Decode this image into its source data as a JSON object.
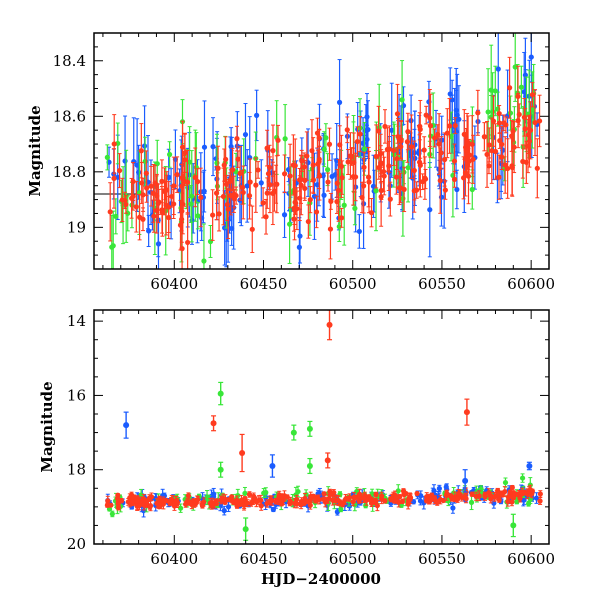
{
  "colors": {
    "blue": "#1a5cff",
    "green": "#39e639",
    "red": "#ff3b1f",
    "frame": "#000000"
  },
  "xlabel": "HJD−2400000",
  "chart_data": [
    {
      "type": "scatter",
      "panel": "top",
      "ylabel": "Magnitude",
      "xlim": [
        60355,
        60610
      ],
      "ylim": [
        19.15,
        18.3
      ],
      "y_inverted": true,
      "xticks": [
        60400,
        60450,
        60500,
        60550,
        60600
      ],
      "yticks": [
        18.4,
        18.6,
        18.8,
        19
      ],
      "ytick_labels": [
        "18.4",
        "18.6",
        "18.8",
        "19"
      ],
      "error_bars": true,
      "series": [
        {
          "color": "blue",
          "points_per_band": 150,
          "mean_start": 18.87,
          "mean_end": 18.6,
          "scatter": 0.1,
          "err": 0.1
        },
        {
          "color": "green",
          "points_per_band": 90,
          "mean_start": 18.87,
          "mean_end": 18.6,
          "scatter": 0.1,
          "err": 0.1
        },
        {
          "color": "red",
          "points_per_band": 260,
          "mean_start": 18.87,
          "mean_end": 18.63,
          "scatter": 0.08,
          "err": 0.07
        }
      ],
      "reference_line": {
        "y": 18.88,
        "x_range": [
          60355,
          60380
        ]
      }
    },
    {
      "type": "scatter",
      "panel": "bottom",
      "ylabel": "Magnitude",
      "xlim": [
        60355,
        60610
      ],
      "ylim": [
        20,
        13.7
      ],
      "y_inverted": true,
      "xticks": [
        60400,
        60450,
        60500,
        60550,
        60600
      ],
      "yticks": [
        14,
        16,
        18,
        20
      ],
      "ytick_labels": [
        "14",
        "16",
        "18",
        "20"
      ],
      "error_bars": true,
      "series": [
        {
          "color": "blue",
          "points_per_band": 150,
          "mean_start": 18.87,
          "mean_end": 18.62,
          "scatter": 0.12,
          "err": 0.1
        },
        {
          "color": "green",
          "points_per_band": 90,
          "mean_start": 18.87,
          "mean_end": 18.62,
          "scatter": 0.15,
          "err": 0.12
        },
        {
          "color": "red",
          "points_per_band": 260,
          "mean_start": 18.87,
          "mean_end": 18.65,
          "scatter": 0.08,
          "err": 0.08
        }
      ],
      "outliers": [
        {
          "color": "blue",
          "x": 60373,
          "y": 16.8,
          "err": 0.35
        },
        {
          "color": "red",
          "x": 60422,
          "y": 16.75,
          "err": 0.2
        },
        {
          "color": "green",
          "x": 60426,
          "y": 15.95,
          "err": 0.3
        },
        {
          "color": "green",
          "x": 60426,
          "y": 18.0,
          "err": 0.2
        },
        {
          "color": "red",
          "x": 60438,
          "y": 17.55,
          "err": 0.5
        },
        {
          "color": "blue",
          "x": 60455,
          "y": 17.9,
          "err": 0.3
        },
        {
          "color": "green",
          "x": 60467,
          "y": 17.0,
          "err": 0.2
        },
        {
          "color": "green",
          "x": 60476,
          "y": 16.9,
          "err": 0.2
        },
        {
          "color": "green",
          "x": 60476,
          "y": 17.9,
          "err": 0.2
        },
        {
          "color": "red",
          "x": 60486,
          "y": 17.75,
          "err": 0.2
        },
        {
          "color": "red",
          "x": 60487,
          "y": 14.1,
          "err": 0.4
        },
        {
          "color": "blue",
          "x": 60563,
          "y": 18.3,
          "err": 0.3
        },
        {
          "color": "red",
          "x": 60564,
          "y": 16.45,
          "err": 0.35
        },
        {
          "color": "blue",
          "x": 60599,
          "y": 17.9,
          "err": 0.1
        },
        {
          "color": "green",
          "x": 60440,
          "y": 19.6,
          "err": 0.3
        },
        {
          "color": "green",
          "x": 60590,
          "y": 19.5,
          "err": 0.3
        }
      ]
    }
  ]
}
